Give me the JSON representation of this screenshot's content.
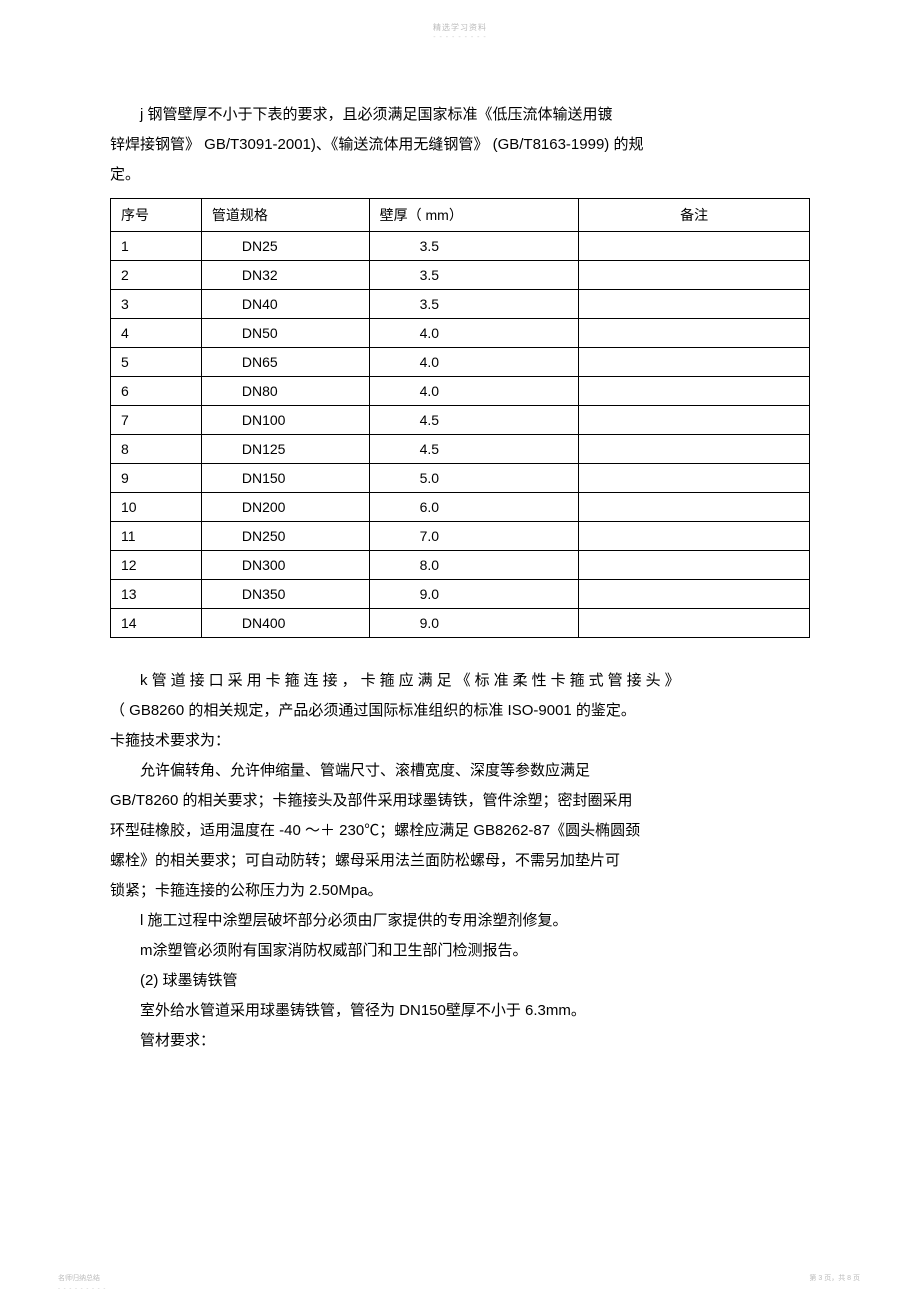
{
  "header": {
    "watermark": "精选学习资料",
    "dashes": "- - - - - - - - -"
  },
  "intro": {
    "line1": "j  钢管壁厚不小于下表的要求，且必须满足国家标准《低压流体输送用镀",
    "line2": "锌焊接钢管》  GB/T3091-2001)、《输送流体用无缝钢管》    (GB/T8163-1999) 的规",
    "line3": "定。"
  },
  "table": {
    "headers": {
      "c1": "序号",
      "c2": "管道规格",
      "c3": "壁厚（ mm）",
      "c4": "备注"
    },
    "rows": [
      {
        "no": "1",
        "spec": "DN25",
        "thick": "3.5",
        "note": ""
      },
      {
        "no": "2",
        "spec": "DN32",
        "thick": "3.5",
        "note": ""
      },
      {
        "no": "3",
        "spec": "DN40",
        "thick": "3.5",
        "note": ""
      },
      {
        "no": "4",
        "spec": "DN50",
        "thick": "4.0",
        "note": ""
      },
      {
        "no": "5",
        "spec": "DN65",
        "thick": "4.0",
        "note": ""
      },
      {
        "no": "6",
        "spec": "DN80",
        "thick": "4.0",
        "note": ""
      },
      {
        "no": "7",
        "spec": "DN100",
        "thick": "4.5",
        "note": ""
      },
      {
        "no": "8",
        "spec": "DN125",
        "thick": "4.5",
        "note": ""
      },
      {
        "no": "9",
        "spec": "DN150",
        "thick": "5.0",
        "note": ""
      },
      {
        "no": "10",
        "spec": "DN200",
        "thick": "6.0",
        "note": ""
      },
      {
        "no": "11",
        "spec": "DN250",
        "thick": "7.0",
        "note": ""
      },
      {
        "no": "12",
        "spec": "DN300",
        "thick": "8.0",
        "note": ""
      },
      {
        "no": "13",
        "spec": "DN350",
        "thick": "9.0",
        "note": ""
      },
      {
        "no": "14",
        "spec": "DN400",
        "thick": "9.0",
        "note": ""
      }
    ]
  },
  "body": {
    "k1_prefix": "k ",
    "k1_spaced": "管道接口采用卡箍连接，卡箍应满足《标准柔性卡箍式管接头》",
    "k2": "（ GB8260  的相关规定，产品必须通过国际标准组织的标准     ISO-9001 的鉴定。",
    "k3": "卡箍技术要求为：",
    "k4": "允许偏转角、允许伸缩量、管端尺寸、滚槽宽度、深度等参数应满足",
    "k5": "GB/T8260 的相关要求；卡箍接头及部件采用球墨铸铁，管件涂塑；密封圈采用",
    "k6": "环型硅橡胶，适用温度在   -40 ～＋ 230℃；螺栓应满足    GB8262-87《圆头椭圆颈",
    "k7": "螺栓》的相关要求；可自动防转；螺母采用法兰面防松螺母，不需另加垫片可",
    "k8": "锁紧；卡箍连接的公称压力为    2.50Mpa。",
    "l1": "l 施工过程中涂塑层破坏部分必须由厂家提供的专用涂塑剂修复。",
    "m1": "m涂塑管必须附有国家消防权威部门和卫生部门检测报告。",
    "s2": "(2) 球墨铸铁管",
    "s2a": "室外给水管道采用球墨铸铁管，管径为    DN150壁厚不小于  6.3mm。",
    "s2b": "管材要求："
  },
  "footer": {
    "left": "名师归纳总结",
    "left_dashes": "- - - - - - - - -",
    "right": "第 3 页，共 8 页"
  }
}
